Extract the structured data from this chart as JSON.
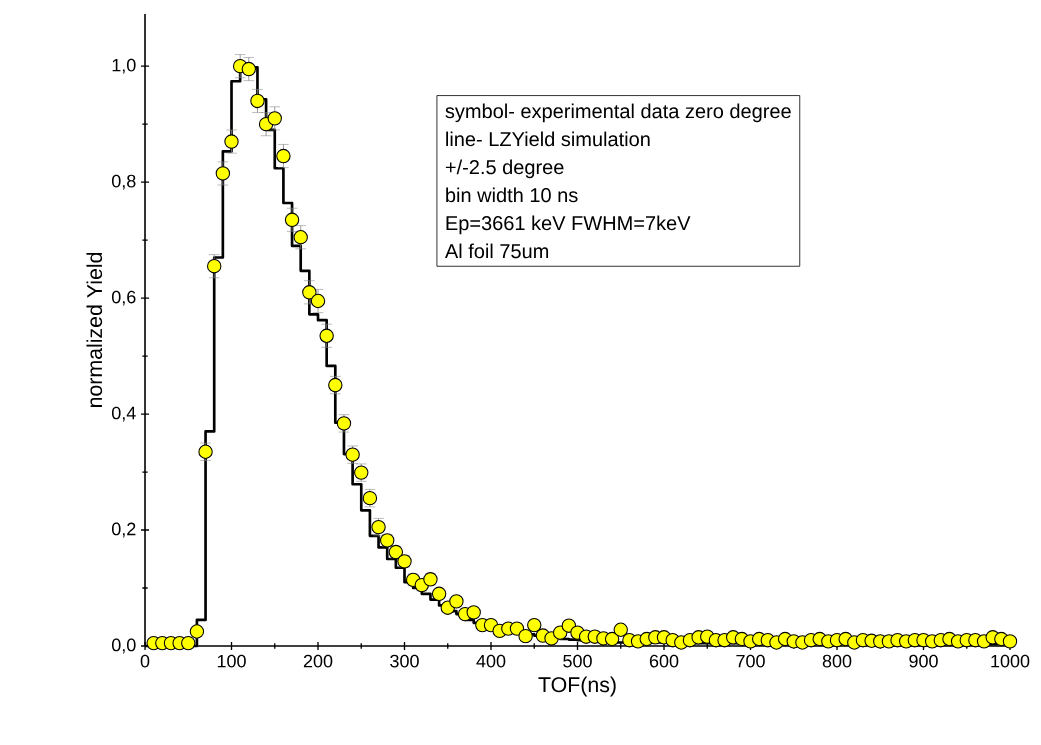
{
  "chart_data": {
    "type": "scatter",
    "xlabel": "TOF(ns)",
    "ylabel": "normalized Yield",
    "xlim": [
      0,
      1000
    ],
    "ylim": [
      0,
      1.09
    ],
    "xticks": [
      0,
      100,
      200,
      300,
      400,
      500,
      600,
      700,
      800,
      900,
      1000
    ],
    "yticks": [
      {
        "value": 0,
        "label": "0,0"
      },
      {
        "value": 0.2,
        "label": "0,2"
      },
      {
        "value": 0.4,
        "label": "0,4"
      },
      {
        "value": 0.6,
        "label": "0,6"
      },
      {
        "value": 0.8,
        "label": "0,8"
      },
      {
        "value": 1.0,
        "label": "1,0"
      }
    ],
    "annotations": [
      "symbol- experimental data zero degree",
      "line- LZYield simulation",
      "+/-2.5 degree",
      "bin width 10 ns",
      "Ep=3661 keV FWHM=7keV",
      "Al foil 75um"
    ],
    "series": [
      {
        "type": "step",
        "color": "#000000",
        "marker": "none",
        "x": [
          0,
          10,
          20,
          30,
          40,
          50,
          60,
          70,
          80,
          90,
          100,
          110,
          120,
          130,
          140,
          150,
          160,
          170,
          180,
          190,
          200,
          210,
          220,
          230,
          240,
          250,
          260,
          270,
          280,
          290,
          300,
          310,
          320,
          330,
          340,
          350,
          360,
          370,
          380,
          390,
          400,
          410,
          420,
          430,
          440,
          450,
          460,
          470,
          480,
          490,
          500,
          510,
          520,
          530,
          540,
          550,
          560,
          570,
          580,
          590,
          600,
          610,
          620,
          630,
          640,
          650,
          660,
          670,
          680,
          690,
          700,
          710,
          720,
          730,
          740,
          750,
          760,
          770,
          780,
          790,
          800,
          810,
          820,
          830,
          840,
          850,
          860,
          870,
          880,
          890,
          900,
          910,
          920,
          930,
          940,
          950,
          960,
          970,
          980,
          990,
          1000
        ],
        "values": [
          0,
          0,
          0,
          0,
          0,
          0,
          0.045,
          0.37,
          0.67,
          0.853,
          0.974,
          0.993,
          0.998,
          0.943,
          0.89,
          0.824,
          0.764,
          0.69,
          0.647,
          0.572,
          0.562,
          0.483,
          0.385,
          0.331,
          0.279,
          0.234,
          0.19,
          0.17,
          0.15,
          0.135,
          0.11,
          0.1,
          0.09,
          0.08,
          0.07,
          0.06,
          0.055,
          0.045,
          0.04,
          0.035,
          0.03,
          0.027,
          0.025,
          0.022,
          0.02,
          0.018,
          0.016,
          0.014,
          0.012,
          0.011,
          0.01,
          0.009,
          0.008,
          0.006,
          0.006,
          0.006,
          0.006,
          0.006,
          0.006,
          0.006,
          0.006,
          0.005,
          0.005,
          0.005,
          0.005,
          0.005,
          0.005,
          0.005,
          0.005,
          0.005,
          0.005,
          0.004,
          0.004,
          0.004,
          0.004,
          0.004,
          0.004,
          0.004,
          0.004,
          0.004,
          0.004,
          0.003,
          0.003,
          0.003,
          0.003,
          0.003,
          0.003,
          0.003,
          0.003,
          0.003,
          0.003,
          0.003,
          0.003,
          0.003,
          0.003,
          0.003,
          0.003,
          0.003,
          0.003,
          0.003,
          0.003
        ]
      },
      {
        "color": "#ffff00",
        "marker": "circle",
        "x": [
          10,
          20,
          30,
          40,
          50,
          60,
          70,
          80,
          90,
          100,
          110,
          120,
          130,
          140,
          150,
          160,
          170,
          180,
          190,
          200,
          210,
          220,
          230,
          240,
          250,
          260,
          270,
          280,
          290,
          300,
          310,
          320,
          330,
          340,
          350,
          360,
          370,
          380,
          390,
          400,
          410,
          420,
          430,
          440,
          450,
          460,
          470,
          480,
          490,
          500,
          510,
          520,
          530,
          540,
          550,
          560,
          570,
          580,
          590,
          600,
          610,
          620,
          630,
          640,
          650,
          660,
          670,
          680,
          690,
          700,
          710,
          720,
          730,
          740,
          750,
          760,
          770,
          780,
          790,
          800,
          810,
          820,
          830,
          840,
          850,
          860,
          870,
          880,
          890,
          900,
          910,
          920,
          930,
          940,
          950,
          960,
          970,
          980,
          990,
          1000
        ],
        "values": [
          0.005,
          0.005,
          0.005,
          0.005,
          0.005,
          0.025,
          0.335,
          0.655,
          0.815,
          0.87,
          1.0,
          0.995,
          0.94,
          0.9,
          0.91,
          0.845,
          0.735,
          0.705,
          0.61,
          0.595,
          0.535,
          0.45,
          0.384,
          0.33,
          0.299,
          0.255,
          0.205,
          0.182,
          0.162,
          0.146,
          0.114,
          0.105,
          0.115,
          0.09,
          0.066,
          0.077,
          0.055,
          0.058,
          0.036,
          0.036,
          0.026,
          0.03,
          0.03,
          0.017,
          0.036,
          0.018,
          0.013,
          0.023,
          0.035,
          0.023,
          0.016,
          0.016,
          0.013,
          0.012,
          0.028,
          0.01,
          0.008,
          0.012,
          0.015,
          0.015,
          0.01,
          0.006,
          0.01,
          0.015,
          0.016,
          0.01,
          0.01,
          0.015,
          0.012,
          0.008,
          0.012,
          0.01,
          0.006,
          0.012,
          0.008,
          0.006,
          0.01,
          0.012,
          0.008,
          0.01,
          0.012,
          0.006,
          0.01,
          0.009,
          0.008,
          0.008,
          0.01,
          0.008,
          0.01,
          0.01,
          0.008,
          0.01,
          0.012,
          0.008,
          0.01,
          0.01,
          0.008,
          0.015,
          0.012,
          0.008
        ],
        "errors": [
          null,
          null,
          null,
          null,
          null,
          null,
          0.015,
          0.02,
          0.02,
          0.02,
          0.02,
          0.02,
          0.02,
          0.02,
          0.02,
          0.02,
          0.02,
          0.02,
          0.02,
          0.02,
          0.02,
          0.015,
          0.015,
          0.015,
          0.015,
          0.015,
          0.015,
          0.01,
          0.01,
          0.01,
          0.01,
          0.01,
          0.01,
          null,
          null,
          null,
          null,
          null,
          null,
          null,
          null,
          null,
          null,
          null,
          null,
          null,
          null,
          null,
          null,
          null,
          null,
          null,
          null,
          null,
          null,
          null,
          null,
          null,
          null,
          null,
          null,
          null,
          null,
          null,
          null,
          null,
          null,
          null,
          null,
          null,
          null,
          null,
          null,
          null,
          null,
          null,
          null,
          null,
          null,
          null,
          null,
          null,
          null,
          null,
          null,
          null,
          null,
          null,
          null,
          null,
          null,
          null,
          null,
          null,
          null,
          null,
          null,
          null,
          null,
          null
        ]
      }
    ]
  }
}
